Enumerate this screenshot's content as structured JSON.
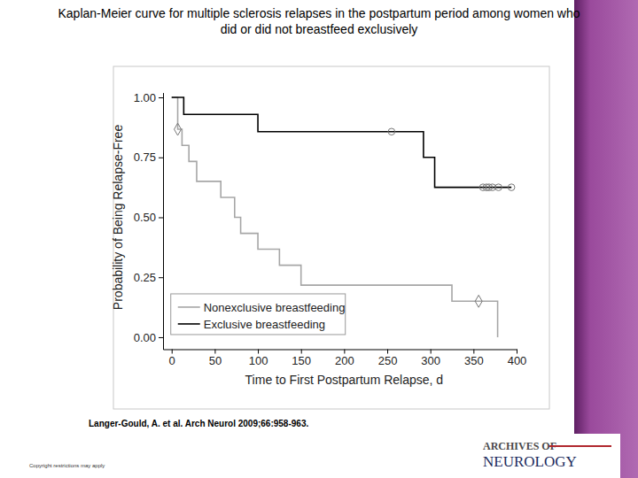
{
  "chart_data": {
    "type": "line",
    "title": [
      "Kaplan-Meier curve for multiple sclerosis relapses in the postpartum period among women who",
      "did or did not breastfeed exclusively"
    ],
    "x_label": "Time to First Postpartum Relapse, d",
    "y_label": "Probability of Being Relapse-Free",
    "annotations": [
      "Langer-Gould, A. et al. Arch Neurol 2009;66:958-963.",
      "Copyright restrictions may apply",
      "ARCHIVES OF",
      "NEUROLOGY"
    ],
    "legend": "lower left",
    "xlim": [
      -10,
      400
    ],
    "xticks": [
      0,
      50,
      100,
      150,
      200,
      250,
      300,
      350,
      400
    ],
    "ylim": [
      -0.05,
      1.02
    ],
    "yticks": [
      {
        "value": 0,
        "label": "0.00"
      },
      {
        "value": 0.25,
        "label": "0.25"
      },
      {
        "value": 0.5,
        "label": "0.50"
      },
      {
        "value": 0.75,
        "label": "0.75"
      },
      {
        "value": 1,
        "label": "1.00"
      }
    ],
    "grid": false,
    "series": [
      {
        "name": "Nonexclusive breastfeeding",
        "color": "#a6a6a6",
        "line_style": "step",
        "marker": "diamond",
        "x": [
          0,
          7,
          12,
          20,
          29,
          57,
          73,
          80,
          100,
          125,
          150,
          325,
          378
        ],
        "values": [
          1,
          0.867,
          0.8,
          0.733,
          0.65,
          0.583,
          0.5,
          0.433,
          0.367,
          0.3,
          0.217,
          0.15,
          0
        ],
        "censored": {
          "x": [
            7,
            356
          ],
          "values": [
            0.867,
            0.15
          ]
        }
      },
      {
        "name": "Exclusive breastfeeding",
        "color": "#000000",
        "line_style": "step",
        "marker": "circle",
        "x": [
          0,
          14,
          100,
          292,
          305,
          394
        ],
        "values": [
          1,
          0.929,
          0.857,
          0.75,
          0.625,
          0.625
        ],
        "censored": {
          "x": [
            255,
            361,
            365,
            368,
            372,
            379,
            394
          ],
          "values": [
            0.857,
            0.625,
            0.625,
            0.625,
            0.625,
            0.625,
            0.625
          ]
        }
      }
    ]
  }
}
